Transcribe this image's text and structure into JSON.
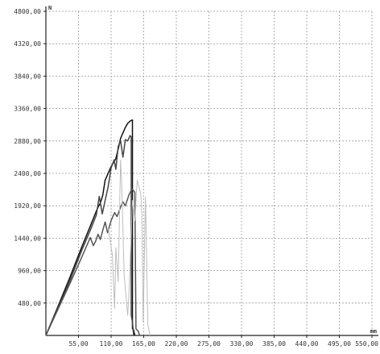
{
  "chart_data": {
    "type": "line",
    "xlabel": "mm",
    "ylabel": "N",
    "xlim": [
      0,
      550
    ],
    "ylim": [
      0,
      4800
    ],
    "grid": true,
    "x_ticks": [
      "55,00",
      "110,00",
      "165,00",
      "220,00",
      "275,00",
      "330,00",
      "385,00",
      "440,00",
      "495,00",
      "550,00"
    ],
    "y_ticks": [
      "480,00",
      "960,00",
      "1440,00",
      "1920,00",
      "2400,00",
      "2880,00",
      "3360,00",
      "3840,00",
      "4320,00",
      "4800,00"
    ],
    "series": [
      {
        "color": "#111111",
        "x": [
          0,
          20,
          40,
          60,
          75,
          85,
          88,
          92,
          96,
          100,
          110,
          118,
          122,
          126,
          130,
          134,
          138,
          143,
          146,
          146,
          148,
          150
        ],
        "y": [
          0,
          420,
          850,
          1300,
          1620,
          1840,
          1900,
          1960,
          2080,
          2300,
          2500,
          2620,
          2760,
          2920,
          3000,
          3080,
          3140,
          3180,
          3190,
          100,
          80,
          0
        ]
      },
      {
        "color": "#444444",
        "x": [
          0,
          20,
          40,
          60,
          75,
          85,
          90,
          95,
          100,
          105,
          110,
          115,
          118,
          122,
          126,
          130,
          134,
          138,
          142,
          144,
          144,
          146,
          148
        ],
        "y": [
          0,
          400,
          800,
          1250,
          1560,
          1780,
          2060,
          1800,
          2000,
          2200,
          2480,
          2600,
          2460,
          2800,
          2880,
          2640,
          2900,
          2880,
          2960,
          2940,
          300,
          200,
          0
        ]
      },
      {
        "color": "#555555",
        "x": [
          0,
          20,
          40,
          60,
          70,
          75,
          80,
          84,
          88,
          92,
          96,
          100,
          104,
          110,
          116,
          120,
          126,
          130,
          134,
          140,
          145,
          150,
          152,
          156,
          158
        ],
        "y": [
          0,
          380,
          760,
          1150,
          1350,
          1450,
          1330,
          1400,
          1500,
          1420,
          1560,
          1680,
          1520,
          1700,
          1820,
          1760,
          1900,
          1980,
          1920,
          2080,
          2170,
          2120,
          100,
          60,
          0
        ]
      },
      {
        "color": "#bdbdbd",
        "x": [
          105,
          112,
          116,
          118,
          122,
          126,
          128,
          132,
          138,
          140,
          146,
          150,
          154,
          160,
          162,
          164,
          168,
          172,
          176
        ],
        "y": [
          1600,
          1200,
          400,
          1300,
          800,
          2600,
          2200,
          900,
          300,
          600,
          2000,
          1700,
          2300,
          2100,
          1800,
          200,
          2050,
          150,
          0
        ]
      }
    ]
  }
}
